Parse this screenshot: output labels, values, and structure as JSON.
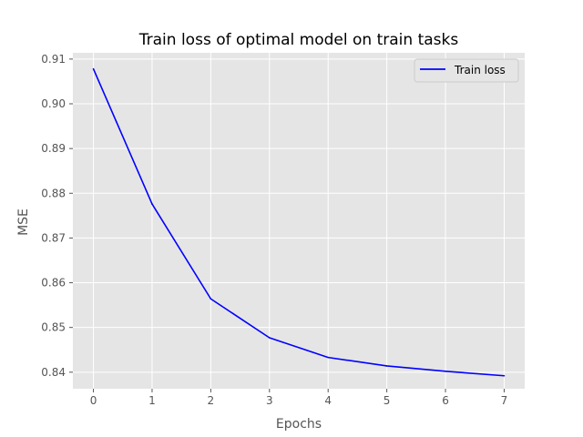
{
  "chart_data": {
    "type": "line",
    "title": "Train loss of optimal model on train tasks",
    "xlabel": "Epochs",
    "ylabel": "MSE",
    "x": [
      0,
      1,
      2,
      3,
      4,
      5,
      6,
      7
    ],
    "x_ticks": [
      "0",
      "1",
      "2",
      "3",
      "4",
      "5",
      "6",
      "7"
    ],
    "y_ticks": [
      "0.84",
      "0.85",
      "0.86",
      "0.87",
      "0.88",
      "0.89",
      "0.90",
      "0.91"
    ],
    "xlim": [
      -0.35,
      7.35
    ],
    "ylim": [
      0.8363,
      0.9114
    ],
    "grid": true,
    "legend_position": "upper right",
    "series": [
      {
        "name": "Train loss",
        "color": "#0000ff",
        "values": [
          0.9078,
          0.8776,
          0.8564,
          0.8477,
          0.8433,
          0.8414,
          0.8402,
          0.8392
        ]
      }
    ],
    "colors": {
      "plot_background": "#e5e5e5",
      "grid": "#ffffff",
      "tick_text": "#555555"
    }
  }
}
